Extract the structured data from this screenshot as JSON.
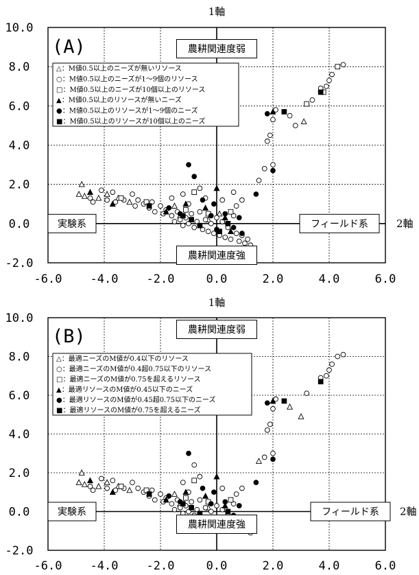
{
  "chart_data": [
    {
      "type": "scatter",
      "panel_label": "(A)",
      "xlabel": "2軸",
      "ylabel": "1軸",
      "xlim": [
        -6.0,
        6.0
      ],
      "ylim": [
        -2.0,
        10.0
      ],
      "xticks": [
        "-6.0",
        "-4.0",
        "-2.0",
        "0.0",
        "2.0",
        "4.0",
        "6.0"
      ],
      "yticks": [
        "10.0",
        "8.0",
        "6.0",
        "4.0",
        "2.0",
        "0.0",
        "-2.0"
      ],
      "grid": true,
      "legend_position": "top-left",
      "annotations": {
        "top": "農耕関連度弱",
        "bottom": "農耕関連度強",
        "left": "実験系",
        "right": "フィールド系"
      },
      "series": [
        {
          "name": "△：M値0.5以上のニーズが無いリソース",
          "marker": "open-triangle",
          "points": [
            [
              -4.8,
              2.0
            ],
            [
              -4.9,
              1.5
            ],
            [
              -4.7,
              1.4
            ],
            [
              -4.2,
              1.3
            ],
            [
              -3.9,
              1.5
            ],
            [
              -3.5,
              1.3
            ],
            [
              -3.1,
              1.1
            ],
            [
              -1.5,
              0.9
            ],
            [
              -1.3,
              0.4
            ],
            [
              -0.3,
              0.2
            ],
            [
              0.1,
              0.5
            ],
            [
              3.1,
              5.2
            ]
          ]
        },
        {
          "name": "○：M値0.5以上のニーズが1～9個のリソース",
          "marker": "open-circle",
          "points": [
            [
              -4.5,
              1.3
            ],
            [
              -4.4,
              1.1
            ],
            [
              -4.1,
              1.7
            ],
            [
              -3.9,
              1.2
            ],
            [
              -3.7,
              1.6
            ],
            [
              -3.6,
              1.1
            ],
            [
              -3.3,
              1.2
            ],
            [
              -3.0,
              1.5
            ],
            [
              -2.8,
              1.2
            ],
            [
              -2.6,
              1.0
            ],
            [
              -2.4,
              0.8
            ],
            [
              -2.3,
              1.1
            ],
            [
              -2.2,
              0.6
            ],
            [
              -2.0,
              0.9
            ],
            [
              -1.9,
              0.5
            ],
            [
              -1.8,
              0.7
            ],
            [
              -1.6,
              0.4
            ],
            [
              -1.5,
              0.1
            ],
            [
              -1.4,
              0.6
            ],
            [
              -1.3,
              0.2
            ],
            [
              -1.2,
              -0.1
            ],
            [
              -1.1,
              0.3
            ],
            [
              -1.0,
              0.0
            ],
            [
              -0.9,
              0.5
            ],
            [
              -0.8,
              -0.2
            ],
            [
              -0.7,
              0.1
            ],
            [
              -0.6,
              0.6
            ],
            [
              -0.5,
              -0.3
            ],
            [
              -0.4,
              0.2
            ],
            [
              -0.3,
              -0.4
            ],
            [
              -0.2,
              0.0
            ],
            [
              -0.1,
              -0.5
            ],
            [
              0.0,
              0.3
            ],
            [
              0.1,
              -0.6
            ],
            [
              0.2,
              0.1
            ],
            [
              0.3,
              -0.7
            ],
            [
              0.4,
              -0.2
            ],
            [
              0.5,
              -0.8
            ],
            [
              0.6,
              0.4
            ],
            [
              0.7,
              -0.5
            ],
            [
              0.8,
              -0.9
            ],
            [
              0.9,
              -0.6
            ],
            [
              1.0,
              -1.0
            ],
            [
              1.1,
              -0.8
            ],
            [
              1.2,
              -1.1
            ],
            [
              -1.2,
              1.5
            ],
            [
              -1.0,
              1.0
            ],
            [
              0.7,
              0.9
            ],
            [
              0.9,
              1.2
            ],
            [
              0.2,
              1.2
            ],
            [
              0.6,
              1.6
            ],
            [
              -2.9,
              0.9
            ],
            [
              -0.6,
              1.8
            ],
            [
              -0.4,
              1.3
            ],
            [
              -1.6,
              1.3
            ],
            [
              1.5,
              2.2
            ],
            [
              1.7,
              2.8
            ],
            [
              1.8,
              4.2
            ],
            [
              1.9,
              4.5
            ],
            [
              2.0,
              5.3
            ],
            [
              2.1,
              5.8
            ],
            [
              2.6,
              5.5
            ],
            [
              2.8,
              5.0
            ],
            [
              3.4,
              6.3
            ],
            [
              3.7,
              6.9
            ],
            [
              3.9,
              7.0
            ],
            [
              4.0,
              7.3
            ],
            [
              4.1,
              7.6
            ],
            [
              4.5,
              8.1
            ],
            [
              2.0,
              3.0
            ]
          ]
        },
        {
          "name": "□：M値0.5以上のニーズが10個以上のリソース",
          "marker": "open-square",
          "points": [
            [
              -3.4,
              1.3
            ],
            [
              -2.5,
              1.1
            ],
            [
              -0.8,
              1.6
            ],
            [
              -1.1,
              0.7
            ],
            [
              0.5,
              0.6
            ],
            [
              3.2,
              6.1
            ],
            [
              3.8,
              6.7
            ],
            [
              4.3,
              8.0
            ],
            [
              -0.3,
              0.5
            ]
          ]
        },
        {
          "name": "▲：M値0.5以上のリソースが無いニーズ",
          "marker": "filled-triangle",
          "points": [
            [
              -4.5,
              1.6
            ],
            [
              -3.7,
              1.0
            ],
            [
              -1.1,
              1.0
            ],
            [
              -0.4,
              0.8
            ],
            [
              0.0,
              1.8
            ],
            [
              0.3,
              0.3
            ],
            [
              0.5,
              -0.4
            ],
            [
              2.0,
              5.7
            ],
            [
              -1.8,
              0.6
            ]
          ]
        },
        {
          "name": "●：M値0.5以上のリソースが1～9個のニーズ",
          "marker": "filled-circle",
          "points": [
            [
              -1.7,
              0.8
            ],
            [
              -1.3,
              0.5
            ],
            [
              -1.0,
              3.0
            ],
            [
              -0.8,
              2.4
            ],
            [
              -0.5,
              1.2
            ],
            [
              -0.2,
              0.4
            ],
            [
              0.0,
              -0.3
            ],
            [
              0.3,
              0.5
            ],
            [
              0.6,
              -0.2
            ],
            [
              0.8,
              0.3
            ],
            [
              1.4,
              1.5
            ],
            [
              1.8,
              5.6
            ],
            [
              2.0,
              2.7
            ],
            [
              -0.1,
              1.0
            ],
            [
              0.9,
              -0.5
            ]
          ]
        },
        {
          "name": "■：M値0.5以上のリソースが10個以上のニーズ",
          "marker": "filled-square",
          "points": [
            [
              -2.4,
              0.9
            ],
            [
              -1.2,
              0.4
            ],
            [
              -0.6,
              -0.1
            ],
            [
              0.1,
              -0.4
            ],
            [
              0.4,
              0.0
            ],
            [
              2.4,
              5.7
            ],
            [
              3.7,
              6.7
            ],
            [
              -0.9,
              0.2
            ]
          ]
        }
      ]
    },
    {
      "type": "scatter",
      "panel_label": "(B)",
      "xlabel": "2軸",
      "ylabel": "1軸",
      "xlim": [
        -6.0,
        6.0
      ],
      "ylim": [
        -2.0,
        10.0
      ],
      "xticks": [
        "-6.0",
        "-4.0",
        "-2.0",
        "0.0",
        "2.0",
        "4.0",
        "6.0"
      ],
      "yticks": [
        "10.0",
        "8.0",
        "6.0",
        "4.0",
        "2.0",
        "0.0",
        "-2.0"
      ],
      "grid": true,
      "legend_position": "top-left",
      "annotations": {
        "top": "農耕関連度弱",
        "bottom": "農耕関連度強",
        "left": "実験系",
        "right": "フィールド系"
      },
      "series": [
        {
          "name": "△：最適ニーズのM値が0.4以下のリソース",
          "marker": "open-triangle",
          "points": [
            [
              -4.8,
              2.0
            ],
            [
              -4.9,
              1.5
            ],
            [
              -4.7,
              1.4
            ],
            [
              -4.2,
              1.3
            ],
            [
              -3.9,
              1.5
            ],
            [
              -3.5,
              1.3
            ],
            [
              -3.1,
              1.1
            ],
            [
              -1.5,
              0.9
            ],
            [
              -1.3,
              0.4
            ],
            [
              -0.3,
              0.2
            ],
            [
              1.5,
              2.6
            ],
            [
              2.6,
              5.4
            ],
            [
              3.0,
              4.9
            ]
          ]
        },
        {
          "name": "○：最適ニーズのM値が0.4超0.75以下のリソース",
          "marker": "open-circle",
          "points": [
            [
              -4.5,
              1.3
            ],
            [
              -4.4,
              1.1
            ],
            [
              -4.1,
              1.7
            ],
            [
              -3.9,
              1.2
            ],
            [
              -3.7,
              1.6
            ],
            [
              -3.6,
              1.1
            ],
            [
              -3.3,
              1.2
            ],
            [
              -3.0,
              1.5
            ],
            [
              -2.8,
              1.2
            ],
            [
              -2.6,
              1.0
            ],
            [
              -2.4,
              0.8
            ],
            [
              -2.3,
              1.1
            ],
            [
              -2.2,
              0.6
            ],
            [
              -2.0,
              0.9
            ],
            [
              -1.9,
              0.5
            ],
            [
              -1.8,
              0.7
            ],
            [
              -1.6,
              0.4
            ],
            [
              -1.5,
              0.1
            ],
            [
              -1.4,
              0.6
            ],
            [
              -1.3,
              0.2
            ],
            [
              -1.2,
              -0.1
            ],
            [
              -1.1,
              0.3
            ],
            [
              -1.0,
              0.0
            ],
            [
              -0.9,
              0.5
            ],
            [
              -0.8,
              -0.2
            ],
            [
              -0.7,
              0.1
            ],
            [
              -0.6,
              0.6
            ],
            [
              -0.5,
              -0.3
            ],
            [
              -0.4,
              0.2
            ],
            [
              -0.3,
              -0.4
            ],
            [
              -0.2,
              0.0
            ],
            [
              -0.1,
              -0.5
            ],
            [
              0.0,
              0.3
            ],
            [
              0.1,
              -0.6
            ],
            [
              0.2,
              0.1
            ],
            [
              0.3,
              -0.7
            ],
            [
              0.4,
              -0.2
            ],
            [
              0.5,
              -0.8
            ],
            [
              0.6,
              0.4
            ],
            [
              0.7,
              -0.5
            ],
            [
              0.8,
              -0.9
            ],
            [
              0.9,
              -0.6
            ],
            [
              1.0,
              -1.0
            ],
            [
              1.1,
              -0.8
            ],
            [
              1.2,
              -1.1
            ],
            [
              -1.2,
              1.5
            ],
            [
              -1.0,
              1.0
            ],
            [
              0.7,
              0.9
            ],
            [
              0.9,
              1.2
            ],
            [
              0.2,
              1.2
            ],
            [
              -0.6,
              1.8
            ],
            [
              -0.8,
              2.4
            ],
            [
              1.7,
              2.8
            ],
            [
              1.8,
              4.2
            ],
            [
              1.9,
              4.5
            ],
            [
              2.0,
              5.3
            ],
            [
              2.1,
              5.8
            ],
            [
              3.2,
              6.1
            ],
            [
              3.7,
              6.9
            ],
            [
              3.9,
              7.0
            ],
            [
              4.0,
              7.3
            ],
            [
              4.1,
              7.6
            ],
            [
              4.3,
              8.0
            ],
            [
              4.5,
              8.1
            ],
            [
              2.0,
              3.0
            ]
          ]
        },
        {
          "name": "□：最適ニーズのM値が0.75を超えるリソース",
          "marker": "open-square",
          "points": [
            [
              -3.4,
              1.3
            ],
            [
              -2.5,
              1.1
            ],
            [
              -0.8,
              1.6
            ],
            [
              -1.1,
              0.7
            ],
            [
              0.5,
              0.6
            ],
            [
              -0.3,
              0.5
            ]
          ]
        },
        {
          "name": "▲：最適リソースのM値が0.45以下のニーズ",
          "marker": "filled-triangle",
          "points": [
            [
              -4.5,
              1.6
            ],
            [
              -3.7,
              1.0
            ],
            [
              -1.1,
              1.0
            ],
            [
              -0.4,
              0.8
            ],
            [
              0.0,
              1.8
            ],
            [
              0.3,
              0.3
            ],
            [
              0.5,
              -0.4
            ],
            [
              -1.8,
              0.6
            ],
            [
              2.0,
              5.7
            ]
          ]
        },
        {
          "name": "●：最適リソースのM値が0.45超0.75以下のニーズ",
          "marker": "filled-circle",
          "points": [
            [
              -1.7,
              0.8
            ],
            [
              -1.3,
              0.5
            ],
            [
              -1.0,
              3.0
            ],
            [
              -0.5,
              1.2
            ],
            [
              -0.2,
              0.4
            ],
            [
              0.0,
              -0.3
            ],
            [
              0.3,
              0.5
            ],
            [
              0.6,
              -0.2
            ],
            [
              0.8,
              0.3
            ],
            [
              1.4,
              1.5
            ],
            [
              1.8,
              5.6
            ],
            [
              2.0,
              2.7
            ],
            [
              -0.1,
              1.0
            ],
            [
              0.9,
              -0.5
            ]
          ]
        },
        {
          "name": "■：最適リソースのM値が0.75を超えるニーズ",
          "marker": "filled-square",
          "points": [
            [
              -2.4,
              0.9
            ],
            [
              -1.2,
              0.4
            ],
            [
              -0.6,
              -0.1
            ],
            [
              0.1,
              -0.4
            ],
            [
              0.4,
              0.0
            ],
            [
              2.4,
              5.7
            ],
            [
              3.7,
              6.7
            ],
            [
              -0.9,
              0.2
            ]
          ]
        }
      ]
    }
  ]
}
